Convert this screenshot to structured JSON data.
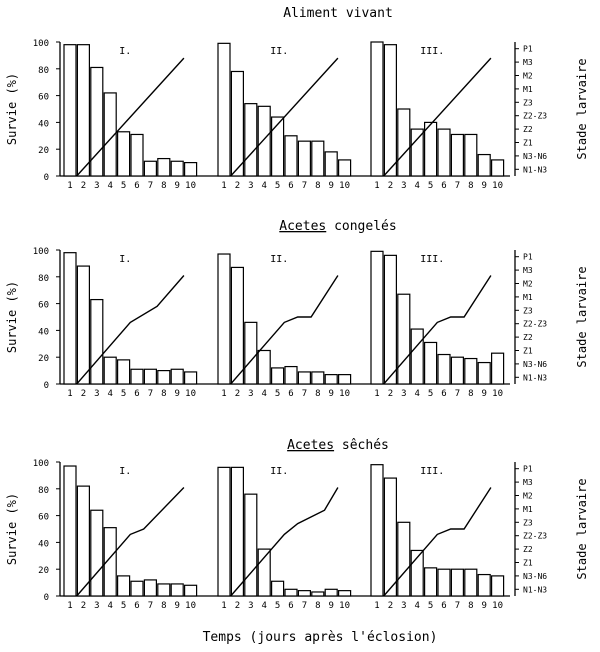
{
  "figure": {
    "x_axis_title": "Temps (jours après l'éclosion)",
    "y_axis_title": "Survie (%)",
    "right_axis_title": "Stade larvaire",
    "y_ticks": [
      "0",
      "20",
      "40",
      "60",
      "80",
      "100"
    ],
    "x_ticks": [
      "1",
      "2",
      "3",
      "4",
      "5",
      "6",
      "7",
      "8",
      "9",
      "10"
    ],
    "stage_labels": [
      "N1-N3",
      "N3-N6",
      "Z1",
      "Z2",
      "Z2-Z3",
      "Z3",
      "M1",
      "M2",
      "M3",
      "P1"
    ],
    "replicate_labels": [
      "I.",
      "II.",
      "III."
    ]
  },
  "chart_data": [
    {
      "type": "bar",
      "title": "Aliment vivant",
      "title_underlined": "",
      "title_rest": "Aliment vivant",
      "xlabel": "Temps (jours après l'éclosion)",
      "ylabel": "Survie (%)",
      "y2label": "Stade larvaire",
      "ylim": [
        0,
        100
      ],
      "categories": [
        1,
        2,
        3,
        4,
        5,
        6,
        7,
        8,
        9,
        10
      ],
      "series": [
        {
          "name": "I.",
          "values": [
            98,
            98,
            81,
            62,
            33,
            31,
            11,
            13,
            11,
            10
          ],
          "stage_line": [
            [
              1.5,
              0
            ],
            [
              9.5,
              8.8
            ]
          ]
        },
        {
          "name": "II.",
          "values": [
            99,
            78,
            54,
            52,
            44,
            30,
            26,
            26,
            18,
            12
          ],
          "stage_line": [
            [
              1.5,
              0
            ],
            [
              9.5,
              8.8
            ]
          ]
        },
        {
          "name": "III.",
          "values": [
            100,
            98,
            50,
            35,
            40,
            35,
            31,
            31,
            16,
            12
          ],
          "stage_line": [
            [
              1.5,
              0
            ],
            [
              9.5,
              8.8
            ]
          ]
        }
      ]
    },
    {
      "type": "bar",
      "title": "Acetes congelés",
      "title_underlined": "Acetes",
      "title_rest": " congelés",
      "xlabel": "Temps (jours après l'éclosion)",
      "ylabel": "Survie (%)",
      "y2label": "Stade larvaire",
      "ylim": [
        0,
        100
      ],
      "categories": [
        1,
        2,
        3,
        4,
        5,
        6,
        7,
        8,
        9,
        10
      ],
      "series": [
        {
          "name": "I.",
          "values": [
            98,
            88,
            63,
            20,
            18,
            11,
            11,
            10,
            11,
            9
          ],
          "stage_line": [
            [
              1.5,
              0
            ],
            [
              5.5,
              4.6
            ],
            [
              7.5,
              5.8
            ],
            [
              9.5,
              8.1
            ]
          ]
        },
        {
          "name": "II.",
          "values": [
            97,
            87,
            46,
            25,
            12,
            13,
            9,
            9,
            7,
            7
          ],
          "stage_line": [
            [
              1.5,
              0
            ],
            [
              5.5,
              4.6
            ],
            [
              6.5,
              5.0
            ],
            [
              7.5,
              5.0
            ],
            [
              9.5,
              8.1
            ]
          ]
        },
        {
          "name": "III.",
          "values": [
            99,
            96,
            67,
            41,
            31,
            22,
            20,
            19,
            16,
            23
          ],
          "stage_line": [
            [
              1.5,
              0
            ],
            [
              5.5,
              4.6
            ],
            [
              6.5,
              5.0
            ],
            [
              7.5,
              5.0
            ],
            [
              9.5,
              8.1
            ]
          ]
        }
      ]
    },
    {
      "type": "bar",
      "title": "Acetes sêchés",
      "title_underlined": "Acetes",
      "title_rest": "  sêchés",
      "xlabel": "Temps (jours après l'éclosion)",
      "ylabel": "Survie (%)",
      "y2label": "Stade larvaire",
      "ylim": [
        0,
        100
      ],
      "categories": [
        1,
        2,
        3,
        4,
        5,
        6,
        7,
        8,
        9,
        10
      ],
      "series": [
        {
          "name": "I.",
          "values": [
            97,
            82,
            64,
            51,
            15,
            11,
            12,
            9,
            9,
            8
          ],
          "stage_line": [
            [
              1.5,
              0
            ],
            [
              5.5,
              4.6
            ],
            [
              6.5,
              5.0
            ],
            [
              9.5,
              8.1
            ]
          ]
        },
        {
          "name": "II.",
          "values": [
            96,
            96,
            76,
            35,
            11,
            5,
            4,
            3,
            5,
            4
          ],
          "stage_line": [
            [
              1.5,
              0
            ],
            [
              5.5,
              4.6
            ],
            [
              6.5,
              5.4
            ],
            [
              8.5,
              6.4
            ],
            [
              9.5,
              8.1
            ]
          ]
        },
        {
          "name": "III.",
          "values": [
            98,
            88,
            55,
            34,
            21,
            20,
            20,
            20,
            16,
            15
          ],
          "stage_line": [
            [
              1.5,
              0
            ],
            [
              5.5,
              4.6
            ],
            [
              6.5,
              5.0
            ],
            [
              7.5,
              5.0
            ],
            [
              9.5,
              8.1
            ]
          ]
        }
      ]
    }
  ]
}
